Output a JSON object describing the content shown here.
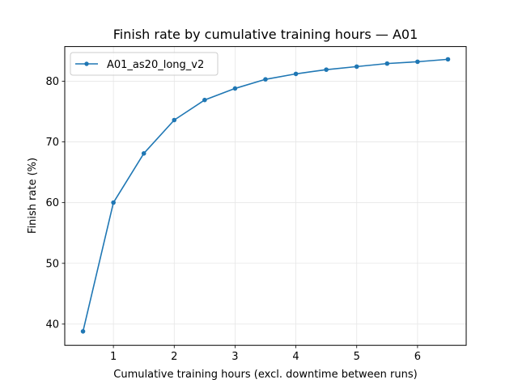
{
  "chart_data": {
    "type": "line",
    "title": "Finish rate by cumulative training hours — A01",
    "xlabel": "Cumulative training hours (excl. downtime between runs)",
    "ylabel": "Finish rate (%)",
    "xlim": [
      0.2,
      6.8
    ],
    "ylim": [
      36.5,
      85.7
    ],
    "xticks": [
      1,
      2,
      3,
      4,
      5,
      6
    ],
    "yticks": [
      40,
      50,
      60,
      70,
      80
    ],
    "grid": true,
    "legend_position": "upper left",
    "series": [
      {
        "name": "A01_as20_long_v2",
        "color": "#1f77b4",
        "marker": "circle",
        "x": [
          0.5,
          1.0,
          1.5,
          2.0,
          2.5,
          3.0,
          3.5,
          4.0,
          4.5,
          5.0,
          5.5,
          6.0,
          6.5
        ],
        "values": [
          38.8,
          60.0,
          68.1,
          73.6,
          76.9,
          78.8,
          80.3,
          81.2,
          81.9,
          82.4,
          82.9,
          83.2,
          83.6
        ]
      }
    ]
  },
  "colors": {
    "series": "#1f77b4",
    "grid": "#e6e6e6",
    "axes": "#000000",
    "legend_border": "#cccccc"
  }
}
